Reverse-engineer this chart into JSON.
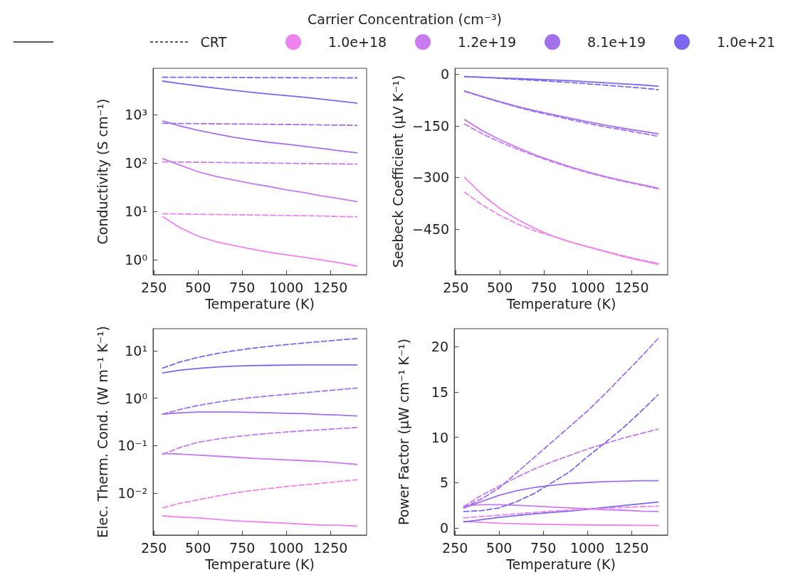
{
  "chart_data": [
    {
      "type": "line",
      "legend": "top",
      "legend_title": "Carrier Concentration (cm⁻³)",
      "annotations": [
        "CRT"
      ],
      "xlabel": "Temperature (K)",
      "ylabel": "Conductivity (S cm⁻¹)",
      "log": "y",
      "grid": false,
      "marker": "none",
      "x": [
        300,
        400,
        500,
        600,
        700,
        800,
        900,
        1000,
        1100,
        1200,
        1300,
        1400
      ],
      "xlim": [
        245,
        1455
      ],
      "xticks": [
        250,
        500,
        750,
        1000,
        1250
      ],
      "ylim": [
        0.5,
        9000
      ],
      "yticks": [
        {
          "value": 1,
          "label": "10⁰"
        },
        {
          "value": 10,
          "label": "10¹"
        },
        {
          "value": 100,
          "label": "10²"
        },
        {
          "value": 1000,
          "label": "10³"
        }
      ],
      "series": [
        {
          "name": "1.0e+18",
          "color": "#ee82ee",
          "line_style": "solid",
          "values": [
            7.8,
            4.6,
            3.1,
            2.4,
            2.0,
            1.7,
            1.45,
            1.28,
            1.14,
            1.0,
            0.88,
            0.75
          ]
        },
        {
          "name": "1.2e+19",
          "color": "#c87aef",
          "line_style": "solid",
          "values": [
            124,
            90,
            66,
            53,
            45,
            38,
            33,
            28,
            24.6,
            21,
            18.5,
            16
          ]
        },
        {
          "name": "8.1e+19",
          "color": "#a270ea",
          "line_style": "solid",
          "values": [
            735,
            580,
            475,
            400,
            340,
            300,
            268,
            245,
            222,
            200,
            180,
            162
          ]
        },
        {
          "name": "1.0e+21",
          "color": "#7b68ee",
          "line_style": "solid",
          "values": [
            4900,
            4350,
            3900,
            3500,
            3180,
            2900,
            2660,
            2460,
            2280,
            2080,
            1900,
            1720
          ]
        },
        {
          "color": "#ee82ee",
          "line_style": "dashed",
          "values": [
            9.0,
            8.9,
            8.8,
            8.7,
            8.6,
            8.5,
            8.4,
            8.3,
            8.2,
            8.1,
            7.9,
            7.8
          ]
        },
        {
          "color": "#c87aef",
          "line_style": "dashed",
          "values": [
            106,
            105,
            104,
            103,
            102,
            101,
            100,
            99,
            98,
            97,
            96,
            95
          ]
        },
        {
          "color": "#a270ea",
          "line_style": "dashed",
          "values": [
            660,
            655,
            650,
            645,
            640,
            635,
            630,
            625,
            620,
            612,
            606,
            600
          ]
        },
        {
          "color": "#7b68ee",
          "line_style": "dashed",
          "values": [
            5900,
            5880,
            5860,
            5840,
            5820,
            5800,
            5780,
            5760,
            5740,
            5720,
            5710,
            5700
          ]
        }
      ]
    },
    {
      "type": "line",
      "legend": false,
      "xlabel": "Temperature (K)",
      "ylabel": "Seebeck Coefficient (μV K⁻¹)",
      "grid": false,
      "marker": "none",
      "x": [
        300,
        400,
        500,
        600,
        700,
        800,
        900,
        1000,
        1100,
        1200,
        1300,
        1400
      ],
      "xlim": [
        245,
        1455
      ],
      "xticks": [
        250,
        500,
        750,
        1000,
        1250
      ],
      "ylim": [
        -582,
        17
      ],
      "yticks": [
        0,
        {
          "value": -150,
          "label": "−150"
        },
        {
          "value": -300,
          "label": "−300"
        },
        {
          "value": -450,
          "label": "−450"
        }
      ],
      "series": [
        {
          "name": "1.0e+18",
          "color": "#ee82ee",
          "line_style": "solid",
          "values": [
            -300,
            -350,
            -390,
            -422,
            -448,
            -470,
            -487,
            -501,
            -515,
            -529,
            -541,
            -552
          ]
        },
        {
          "name": "1.2e+19",
          "color": "#c87aef",
          "line_style": "solid",
          "values": [
            -132,
            -164,
            -190,
            -213,
            -234,
            -252,
            -269,
            -284,
            -297,
            -309,
            -320,
            -331
          ]
        },
        {
          "name": "8.1e+19",
          "color": "#a270ea",
          "line_style": "solid",
          "values": [
            -49,
            -65,
            -80,
            -94,
            -106,
            -117,
            -128,
            -138,
            -148,
            -157,
            -165,
            -173
          ]
        },
        {
          "name": "1.0e+21",
          "color": "#7b68ee",
          "line_style": "solid",
          "values": [
            -7,
            -9,
            -11,
            -13,
            -15,
            -17,
            -19,
            -22,
            -25,
            -28,
            -31,
            -35
          ]
        },
        {
          "name": "1.0e+18",
          "color": "#ee82ee",
          "line_style": "dashed",
          "values": [
            -343,
            -380,
            -410,
            -435,
            -455,
            -470,
            -487,
            -501,
            -514,
            -527,
            -539,
            -549
          ]
        },
        {
          "name": "1.2e+19",
          "color": "#c87aef",
          "line_style": "dashed",
          "values": [
            -145,
            -173,
            -197,
            -218,
            -237,
            -255,
            -271,
            -286,
            -299,
            -311,
            -322,
            -333
          ]
        },
        {
          "name": "8.1e+19",
          "color": "#a270ea",
          "line_style": "dashed",
          "values": [
            -50,
            -66,
            -81,
            -96,
            -109,
            -120,
            -132,
            -143,
            -153,
            -162,
            -171,
            -180
          ]
        },
        {
          "name": "1.0e+21",
          "color": "#7b68ee",
          "line_style": "dashed",
          "values": [
            -7,
            -9,
            -12,
            -15,
            -18,
            -21,
            -24,
            -28,
            -32,
            -36,
            -40,
            -45
          ]
        }
      ]
    },
    {
      "type": "line",
      "legend": false,
      "xlabel": "Temperature (K)",
      "ylabel": "Elec. Therm. Cond. (W m⁻¹ K⁻¹)",
      "log": "y",
      "grid": false,
      "marker": "none",
      "x": [
        300,
        400,
        500,
        600,
        700,
        800,
        900,
        1000,
        1100,
        1200,
        1300,
        1400
      ],
      "xlim": [
        245,
        1455
      ],
      "xticks": [
        250,
        500,
        750,
        1000,
        1250
      ],
      "ylim": [
        0.0013,
        29
      ],
      "yticks": [
        {
          "value": 0.01,
          "label": "10⁻²"
        },
        {
          "value": 0.1,
          "label": "10⁻¹"
        },
        {
          "value": 1,
          "label": "10⁰"
        },
        {
          "value": 10,
          "label": "10¹"
        }
      ],
      "series": [
        {
          "name": "1.0e+18",
          "color": "#ee82ee",
          "line_style": "solid",
          "values": [
            0.0033,
            0.0031,
            0.003,
            0.0028,
            0.0026,
            0.0025,
            0.0024,
            0.0023,
            0.0022,
            0.0021,
            0.0021,
            0.002
          ]
        },
        {
          "name": "1.2e+19",
          "color": "#c87aef",
          "line_style": "solid",
          "values": [
            0.068,
            0.066,
            0.063,
            0.06,
            0.057,
            0.054,
            0.052,
            0.05,
            0.048,
            0.046,
            0.043,
            0.04
          ]
        },
        {
          "name": "8.1e+19",
          "color": "#a270ea",
          "line_style": "solid",
          "values": [
            0.46,
            0.49,
            0.51,
            0.51,
            0.51,
            0.5,
            0.49,
            0.48,
            0.47,
            0.45,
            0.44,
            0.42
          ]
        },
        {
          "name": "1.0e+21",
          "color": "#7b68ee",
          "line_style": "solid",
          "values": [
            3.4,
            3.9,
            4.2,
            4.5,
            4.7,
            4.85,
            4.9,
            4.95,
            5.0,
            5.0,
            5.0,
            5.0
          ]
        },
        {
          "name": "1.0e+18",
          "color": "#ee82ee",
          "line_style": "dashed",
          "values": [
            0.0049,
            0.0061,
            0.0072,
            0.0085,
            0.0099,
            0.0112,
            0.0124,
            0.0137,
            0.0149,
            0.016,
            0.0175,
            0.019
          ]
        },
        {
          "name": "1.2e+19",
          "color": "#c87aef",
          "line_style": "dashed",
          "values": [
            0.065,
            0.092,
            0.117,
            0.136,
            0.152,
            0.167,
            0.18,
            0.193,
            0.205,
            0.216,
            0.228,
            0.24
          ]
        },
        {
          "name": "8.1e+19",
          "color": "#a270ea",
          "line_style": "dashed",
          "values": [
            0.46,
            0.58,
            0.7,
            0.81,
            0.92,
            1.02,
            1.11,
            1.2,
            1.29,
            1.4,
            1.51,
            1.63
          ]
        },
        {
          "name": "1.0e+21",
          "color": "#7b68ee",
          "line_style": "dashed",
          "values": [
            4.3,
            5.8,
            7.2,
            8.6,
            9.9,
            11.2,
            12.3,
            13.4,
            14.5,
            15.6,
            16.8,
            18.0
          ]
        }
      ]
    },
    {
      "type": "line",
      "legend": false,
      "xlabel": "Temperature (K)",
      "ylabel": "Power Factor (μW cm⁻¹ K⁻¹)",
      "grid": false,
      "marker": "none",
      "x": [
        300,
        400,
        500,
        600,
        700,
        800,
        900,
        1000,
        1100,
        1200,
        1300,
        1400
      ],
      "xlim": [
        245,
        1455
      ],
      "xticks": [
        250,
        500,
        750,
        1000,
        1250
      ],
      "ylim": [
        -0.8,
        22
      ],
      "yticks": [
        0,
        5,
        10,
        15,
        20
      ],
      "series": [
        {
          "name": "1.0e+18",
          "color": "#ee82ee",
          "line_style": "solid",
          "values": [
            0.7,
            0.6,
            0.5,
            0.45,
            0.4,
            0.37,
            0.34,
            0.32,
            0.3,
            0.28,
            0.27,
            0.25
          ]
        },
        {
          "name": "1.2e+19",
          "color": "#c87aef",
          "line_style": "solid",
          "values": [
            2.45,
            2.55,
            2.55,
            2.5,
            2.4,
            2.3,
            2.2,
            2.1,
            2.0,
            1.95,
            1.85,
            1.8
          ]
        },
        {
          "name": "8.1e+19",
          "color": "#a270ea",
          "line_style": "solid",
          "values": [
            2.2,
            2.9,
            3.6,
            4.1,
            4.45,
            4.7,
            4.9,
            5.0,
            5.1,
            5.15,
            5.2,
            5.2
          ]
        },
        {
          "name": "1.0e+21",
          "color": "#7b68ee",
          "line_style": "solid",
          "values": [
            0.65,
            0.9,
            1.15,
            1.35,
            1.55,
            1.7,
            1.85,
            2.05,
            2.25,
            2.45,
            2.65,
            2.85
          ]
        },
        {
          "name": "1.0e+18",
          "color": "#ee82ee",
          "line_style": "dashed",
          "values": [
            1.1,
            1.25,
            1.4,
            1.55,
            1.7,
            1.85,
            1.95,
            2.05,
            2.15,
            2.25,
            2.33,
            2.4
          ]
        },
        {
          "name": "1.2e+19",
          "color": "#c87aef",
          "line_style": "dashed",
          "values": [
            2.35,
            3.6,
            4.6,
            5.6,
            6.5,
            7.3,
            8.0,
            8.7,
            9.3,
            9.9,
            10.4,
            10.9
          ]
        },
        {
          "name": "8.1e+19",
          "color": "#a270ea",
          "line_style": "dashed",
          "values": [
            2.2,
            3.2,
            4.4,
            6.1,
            7.8,
            9.5,
            11.2,
            12.9,
            14.8,
            16.8,
            18.8,
            20.9
          ]
        },
        {
          "name": "1.0e+21",
          "color": "#7b68ee",
          "line_style": "dashed",
          "values": [
            1.8,
            1.9,
            2.2,
            2.9,
            3.8,
            5.0,
            6.2,
            7.85,
            9.4,
            11.0,
            12.8,
            14.7
          ]
        }
      ]
    }
  ]
}
